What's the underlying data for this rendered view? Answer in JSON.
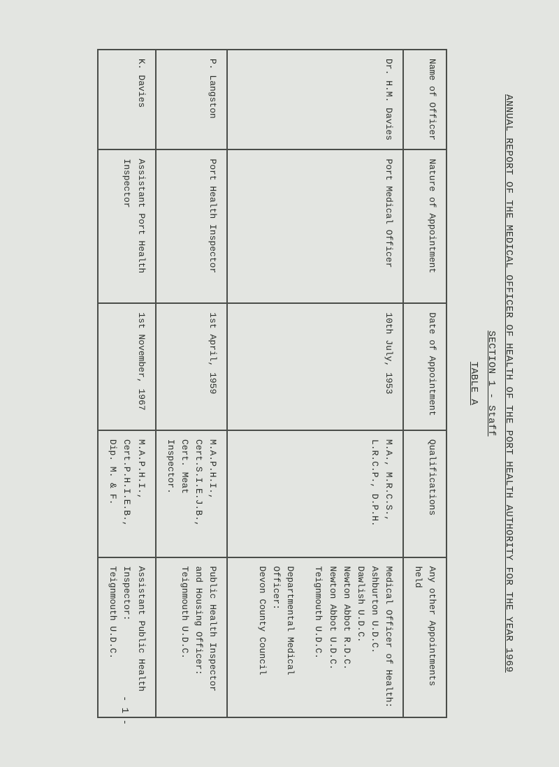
{
  "header": {
    "report_title": "ANNUAL REPORT OF THE MEDICAL OFFICER OF HEALTH OF THE PORT HEALTH AUTHORITY FOR THE YEAR 1969",
    "section_line": "SECTION 1 - Staff",
    "table_label": "TABLE A"
  },
  "columns": {
    "c1": "Name of Officer",
    "c2": "Nature of Appointment",
    "c3": "Date of Appointment",
    "c4": "Qualifications",
    "c5": "Any other Appointments held"
  },
  "rows": [
    {
      "name": "Dr. H.M. Davies",
      "nature": "Port Medical Officer",
      "date": "10th July, 1953",
      "qual": "M.A., M.R.C.S., L.R.C.P., D.P.H.",
      "other": "Medical Officer of Health:\nAshburton U.D.C.\nDawlish U.D.C.\nNewton Abbot R.D.C.\nNewton Abbot U.D.C.\nTeignmouth U.D.C.\n\nDepartmental Medical Officer:\nDevon County Council"
    },
    {
      "name": "P. Langston",
      "nature": "Port Health Inspector",
      "date": "1st April, 1959",
      "qual": "M.A.P.H.I.,\nCert.S.I.E.J.B.,\nCert. Meat Inspector.",
      "other": "Public Health Inspector and Housing Officer:\nTeignmouth U.D.C."
    },
    {
      "name": "K. Davies",
      "nature": "Assistant Port Health Inspector",
      "date": "1st November, 1967",
      "qual": "M.A.P.H.I.,\nCert.P.H.I.E.B.,\nDip. M. & F.",
      "other": "Assistant Public Health Inspector:\nTeignmouth U.D.C."
    }
  ],
  "page_number": "- 1 -",
  "style": {
    "background_color": "#e3e5e1",
    "text_color": "#2b2f2b",
    "border_color": "#4a4d49",
    "font_family": "Courier New",
    "base_fontsize_pt": 10,
    "title_fontsize_pt": 11,
    "rotation_deg": 90
  }
}
